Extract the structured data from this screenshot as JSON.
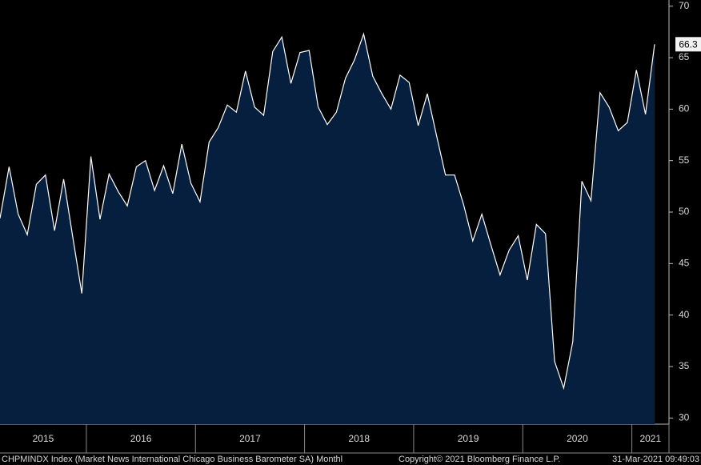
{
  "chart_data": {
    "type": "area",
    "categories": [
      "2015",
      "2015",
      "2015",
      "2015",
      "2015",
      "2015",
      "2015",
      "2015",
      "2015",
      "2015",
      "2016",
      "2016",
      "2016",
      "2016",
      "2016",
      "2016",
      "2016",
      "2016",
      "2016",
      "2016",
      "2016",
      "2016",
      "2017",
      "2017",
      "2017",
      "2017",
      "2017",
      "2017",
      "2017",
      "2017",
      "2017",
      "2017",
      "2017",
      "2017",
      "2018",
      "2018",
      "2018",
      "2018",
      "2018",
      "2018",
      "2018",
      "2018",
      "2018",
      "2018",
      "2018",
      "2018",
      "2019",
      "2019",
      "2019",
      "2019",
      "2019",
      "2019",
      "2019",
      "2019",
      "2019",
      "2019",
      "2019",
      "2019",
      "2020",
      "2020",
      "2020",
      "2020",
      "2020",
      "2020",
      "2020",
      "2020",
      "2020",
      "2020",
      "2020",
      "2020",
      "2021",
      "2021",
      "2021"
    ],
    "values": [
      49.4,
      54.4,
      49.8,
      47.8,
      52.7,
      53.6,
      48.2,
      53.2,
      47.6,
      42.1,
      55.4,
      49.3,
      53.7,
      52.0,
      50.6,
      54.4,
      55.0,
      52.1,
      54.5,
      51.8,
      56.6,
      52.8,
      51.0,
      56.8,
      58.2,
      60.4,
      59.7,
      63.7,
      60.2,
      59.4,
      65.6,
      67.0,
      62.5,
      65.5,
      65.7,
      60.2,
      58.5,
      59.7,
      63.0,
      64.8,
      67.3,
      63.2,
      61.5,
      60.0,
      63.3,
      62.6,
      58.4,
      61.5,
      57.5,
      53.6,
      53.6,
      50.7,
      47.2,
      49.8,
      46.8,
      43.9,
      46.3,
      47.7,
      43.4,
      48.8,
      47.9,
      35.5,
      32.9,
      37.4,
      53.0,
      51.1,
      61.6,
      60.2,
      57.9,
      58.7,
      63.8,
      59.5,
      66.3
    ],
    "color": "#061f3e",
    "line_color": "#ffffff",
    "ylim": [
      29.4,
      70.6
    ],
    "yticks": [
      30,
      35,
      40,
      45,
      50,
      55,
      60,
      65,
      70
    ],
    "footer": [
      "CHPMINDX Index (Market News International Chicago Business Barometer SA)  Monthl",
      "Copyright© 2021 Bloomberg Finance L.P.",
      "31-Mar-2021 09:49:03"
    ]
  }
}
